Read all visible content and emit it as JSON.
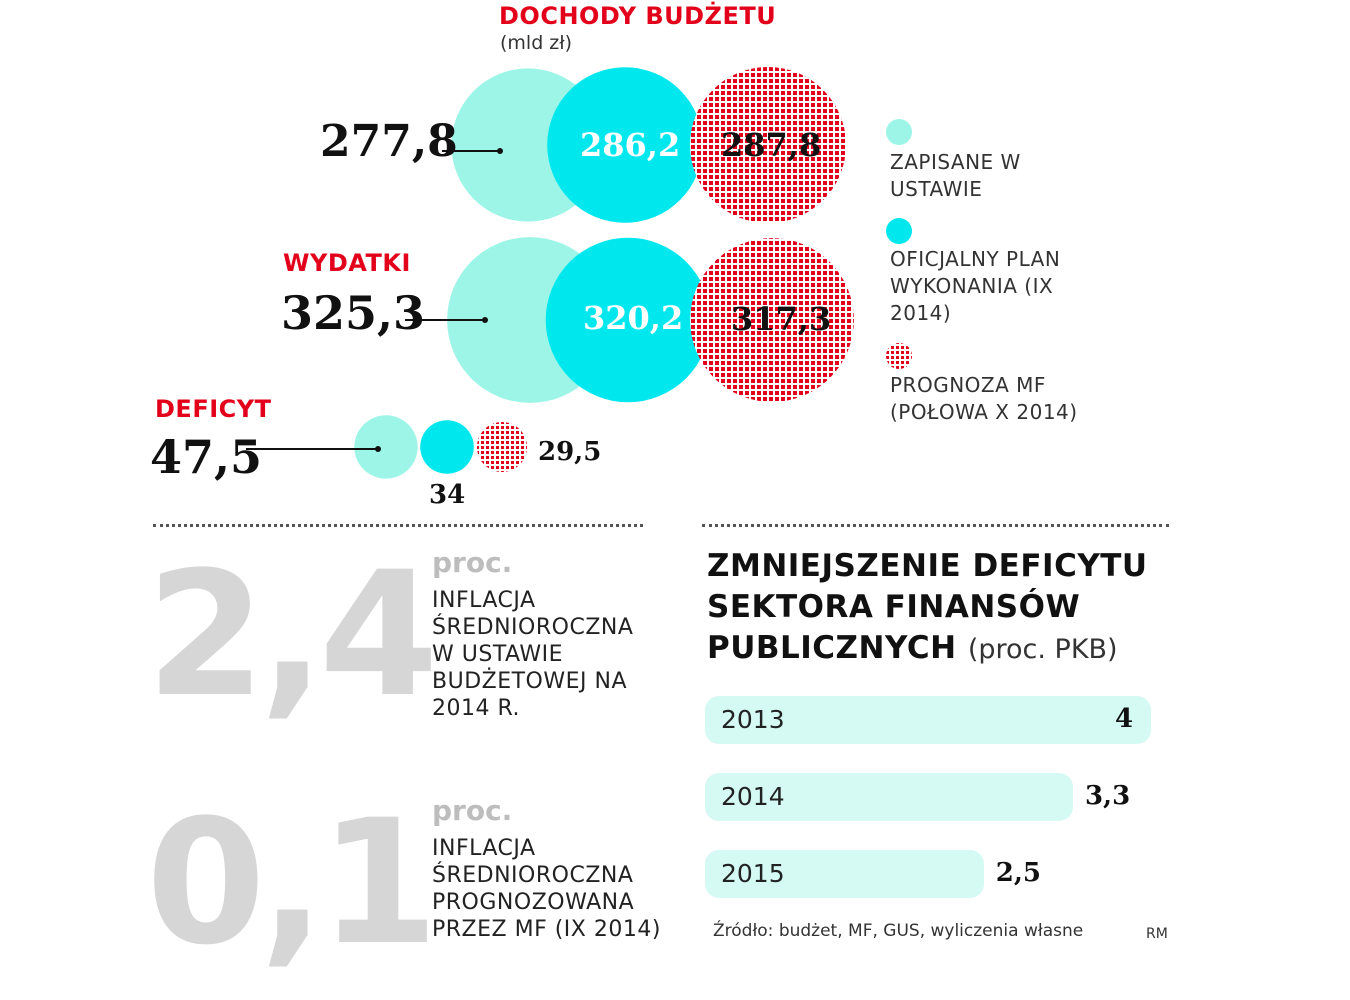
{
  "chart_data": [
    {
      "type": "bubble",
      "title": "DOCHODY BUDŻETU",
      "unit": "(mld zł)",
      "groups": [
        {
          "label": "",
          "values": [
            277.8,
            286.2,
            287.8
          ],
          "value_labels": [
            "277,8",
            "286,2",
            "287,8"
          ]
        },
        {
          "label": "WYDATKI",
          "values": [
            325.3,
            320.2,
            317.3
          ],
          "value_labels": [
            "325,3",
            "320,2",
            "317,3"
          ]
        },
        {
          "label": "DEFICYT",
          "values": [
            47.5,
            34,
            29.5
          ],
          "value_labels": [
            "47,5",
            "34",
            "29,5"
          ]
        }
      ],
      "series": [
        {
          "name": "ZAPISANE W USTAWIE",
          "color": "#9df5e8",
          "pattern": "solid"
        },
        {
          "name": "OFICJALNY PLAN WYKONANIA (IX 2014)",
          "color": "#00e7ee",
          "pattern": "solid"
        },
        {
          "name": "PROGNOZA MF (POŁOWA X 2014)",
          "color": "#e3001b",
          "pattern": "dots"
        }
      ]
    },
    {
      "type": "bar",
      "orientation": "horizontal",
      "title": "ZMNIEJSZENIE DEFICYTU SEKTORA FINANSÓW PUBLICZNYCH",
      "subtitle": "(proc. PKB)",
      "categories": [
        "2013",
        "2014",
        "2015"
      ],
      "values": [
        4,
        3.3,
        2.5
      ],
      "value_labels": [
        "4",
        "3,3",
        "2,5"
      ],
      "xlim": [
        0,
        4
      ],
      "color": "#d4faf3"
    }
  ],
  "bubble_block": {
    "title": "DOCHODY BUDŻETU",
    "unit": "(mld zł)",
    "wydatki_title": "WYDATKI",
    "deficyt_title": "DEFICYT",
    "dochody": {
      "v1": "277,8",
      "v2": "286,2",
      "v3": "287,8"
    },
    "wydatki": {
      "v1": "325,3",
      "v2": "320,2",
      "v3": "317,3"
    },
    "deficyt": {
      "v1": "47,5",
      "v2": "34",
      "v3": "29,5"
    }
  },
  "legend": {
    "item1": "ZAPISANE W USTAWIE",
    "item2": "OFICJALNY PLAN WYKONANIA (IX 2014)",
    "item3": "PROGNOZA MF (POŁOWA X 2014)"
  },
  "inflation": {
    "first": {
      "value": "2,4",
      "unit": "proc.",
      "text": "INFLACJA ŚREDNIOROCZNA W USTAWIE BUDŻETOWEJ NA 2014 R."
    },
    "second": {
      "value": "0,1",
      "unit": "proc.",
      "text": "INFLACJA ŚREDNIOROCZNA PROGNOZOWANA PRZEZ MF (IX 2014)"
    }
  },
  "bars_block": {
    "title": "ZMNIEJSZENIE DEFICYTU SEKTORA FINANSÓW PUBLICZNYCH",
    "subtitle": "(proc. PKB)"
  },
  "footer": {
    "source": "Źródło: budżet, MF, GUS, wyliczenia własne",
    "author": "RM"
  },
  "colors": {
    "red": "#e3001b",
    "light_cyan": "#9df5e8",
    "cyan": "#00e7ee",
    "bar_fill": "#d4faf3"
  }
}
